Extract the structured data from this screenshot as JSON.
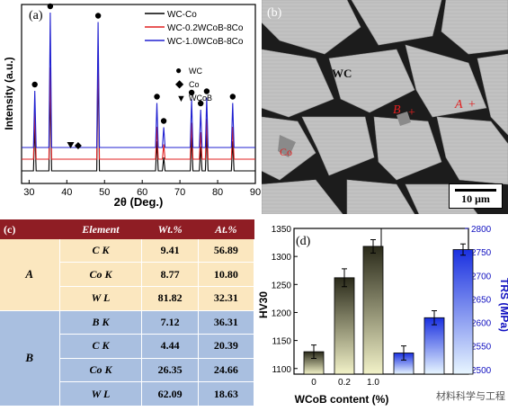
{
  "panel_a": {
    "label": "(a)",
    "ylabel": "Intensity (a.u.)",
    "xlabel": "2θ (Deg.)",
    "xticks": [
      "30",
      "40",
      "50",
      "60",
      "70",
      "80",
      "90"
    ],
    "legend": [
      "WC-Co",
      "WC-0.2WCoB-8Co",
      "WC-1.0WCoB-8Co"
    ],
    "colors": [
      "#000000",
      "#e02020",
      "#2020d0"
    ],
    "phase_legend": [
      {
        "symbol": "●",
        "name": "WC"
      },
      {
        "symbol": "◆",
        "name": "Co"
      },
      {
        "symbol": "▼",
        "name": "WCoB"
      }
    ]
  },
  "panel_b": {
    "label": "(b)",
    "phase_label": "WC",
    "point_a": "A",
    "point_b": "B",
    "point_c": "Co",
    "scale": "10 μm"
  },
  "panel_c": {
    "label": "(c)",
    "headers": [
      "Element",
      "Wt.%",
      "At.%"
    ],
    "groups": [
      {
        "name": "A",
        "rows": [
          {
            "el": "C K",
            "wt": "9.41",
            "at": "56.89"
          },
          {
            "el": "Co K",
            "wt": "8.77",
            "at": "10.80"
          },
          {
            "el": "W L",
            "wt": "81.82",
            "at": "32.31"
          }
        ]
      },
      {
        "name": "B",
        "rows": [
          {
            "el": "B K",
            "wt": "7.12",
            "at": "36.31"
          },
          {
            "el": "C K",
            "wt": "4.44",
            "at": "20.39"
          },
          {
            "el": "Co K",
            "wt": "26.35",
            "at": "24.66"
          },
          {
            "el": "W L",
            "wt": "62.09",
            "at": "18.63"
          }
        ]
      }
    ]
  },
  "panel_d": {
    "label": "(d)",
    "watermark": "材料科学与工程"
  },
  "chart_data": [
    {
      "type": "line",
      "title": "",
      "xlabel": "2θ (Deg.)",
      "ylabel": "Intensity (a.u.)",
      "xlim": [
        28,
        90
      ],
      "series": [
        {
          "name": "WC-Co",
          "peaks_x": [
            31.5,
            35.6,
            48.3,
            63.9,
            65.7,
            73.1,
            75.5,
            77.1,
            84.0
          ],
          "peaks_rel": [
            0.33,
            0.62,
            0.8,
            0.22,
            0.1,
            0.25,
            0.18,
            0.28,
            0.22
          ]
        },
        {
          "name": "WC-0.2WCoB-8Co",
          "peaks_x": [
            31.5,
            35.6,
            48.3,
            63.9,
            65.7,
            73.1,
            75.5,
            77.1,
            84.0
          ],
          "peaks_rel": [
            0.36,
            0.68,
            0.84,
            0.24,
            0.11,
            0.27,
            0.2,
            0.3,
            0.24
          ]
        },
        {
          "name": "WC-1.0WCoB-8Co",
          "peaks_x": [
            31.5,
            35.6,
            48.3,
            63.9,
            65.7,
            73.1,
            75.5,
            77.1,
            84.0
          ],
          "peaks_rel": [
            0.42,
            1.0,
            0.93,
            0.33,
            0.15,
            0.36,
            0.28,
            0.37,
            0.33
          ]
        }
      ]
    },
    {
      "type": "bar",
      "title": "",
      "xlabel": "WCoB content (%)",
      "ylabel": "HV30",
      "ylabel_right": "TRS (MPa)",
      "categories": [
        "0",
        "0.2",
        "1.0"
      ],
      "ylim": [
        1090,
        1350
      ],
      "ylim_right": [
        2490,
        2800
      ],
      "yticks": [
        1100,
        1150,
        1200,
        1250,
        1300,
        1350
      ],
      "yticks_right": [
        2500,
        2550,
        2600,
        2650,
        2700,
        2750,
        2800
      ],
      "series": [
        {
          "name": "HV30",
          "values": [
            1130,
            1262,
            1318
          ],
          "errors": [
            12,
            16,
            12
          ]
        },
        {
          "name": "TRS",
          "values": [
            2535,
            2610,
            2755
          ],
          "errors": [
            15,
            15,
            12
          ]
        }
      ]
    }
  ]
}
